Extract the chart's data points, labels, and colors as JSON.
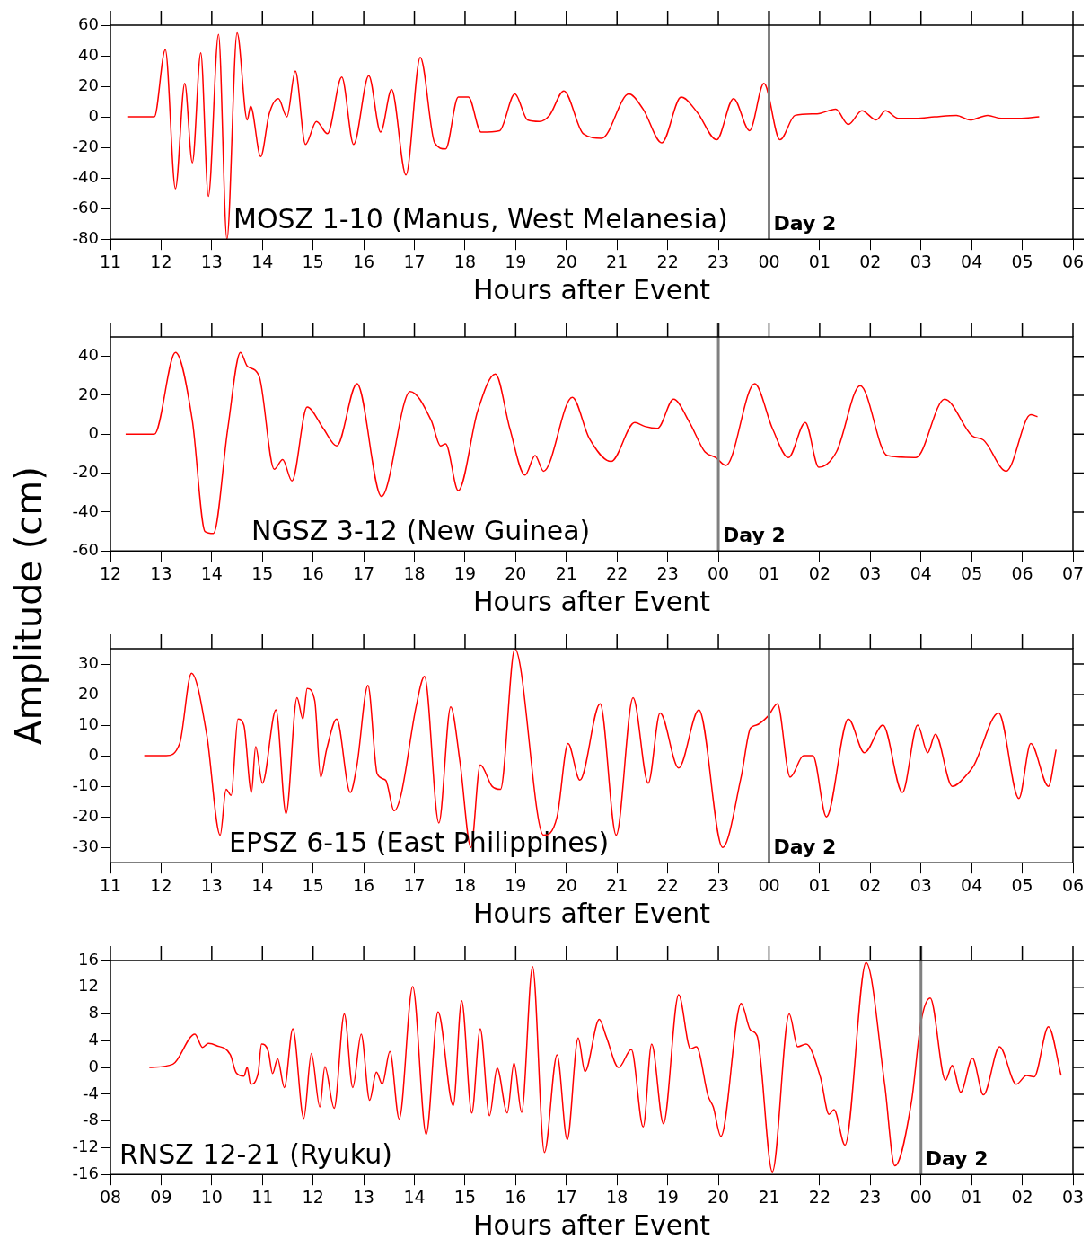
{
  "chart_data": [
    {
      "type": "line",
      "color": "#ff0000",
      "xlabel": "Hours after Event",
      "annotations": [
        "MOSZ 1-10 (Manus, West Melanesia)"
      ],
      "xlim": [
        "2000-01-01T11:00",
        "2000-01-02T06:00"
      ],
      "xticks": [
        {
          "value": "2000-01-01T11:00",
          "label": "11"
        },
        {
          "value": "2000-01-01T12:00",
          "label": "12"
        },
        {
          "value": "2000-01-01T13:00",
          "label": "13"
        },
        {
          "value": "2000-01-01T14:00",
          "label": "14"
        },
        {
          "value": "2000-01-01T15:00",
          "label": "15"
        },
        {
          "value": "2000-01-01T16:00",
          "label": "16"
        },
        {
          "value": "2000-01-01T17:00",
          "label": "17"
        },
        {
          "value": "2000-01-01T18:00",
          "label": "18"
        },
        {
          "value": "2000-01-01T19:00",
          "label": "19"
        },
        {
          "value": "2000-01-01T20:00",
          "label": "20"
        },
        {
          "value": "2000-01-01T21:00",
          "label": "21"
        },
        {
          "value": "2000-01-01T22:00",
          "label": "22"
        },
        {
          "value": "2000-01-01T23:00",
          "label": "23"
        },
        {
          "value": "2000-01-02T00:00",
          "label": "00"
        },
        {
          "value": "2000-01-02T01:00",
          "label": "01"
        },
        {
          "value": "2000-01-02T02:00",
          "label": "02"
        },
        {
          "value": "2000-01-02T03:00",
          "label": "03"
        },
        {
          "value": "2000-01-02T04:00",
          "label": "04"
        },
        {
          "value": "2000-01-02T05:00",
          "label": "05"
        },
        {
          "value": "2000-01-02T06:00",
          "label": "06"
        }
      ],
      "ylim": [
        -80,
        60
      ],
      "yticks": [
        -80,
        -60,
        -40,
        -20,
        0,
        20,
        40,
        60
      ],
      "ref_lines": [
        {
          "axis": "x",
          "value": "2000-01-02T00:00",
          "label": "Day 2",
          "color": "#808080"
        }
      ],
      "x": [
        "2000-01-01T11:21",
        "2000-01-01T11:52",
        "2000-01-01T12:05",
        "2000-01-01T12:17",
        "2000-01-01T12:28",
        "2000-01-01T12:37",
        "2000-01-01T12:47",
        "2000-01-01T12:56",
        "2000-01-01T13:08",
        "2000-01-01T13:18",
        "2000-01-01T13:30",
        "2000-01-01T13:42",
        "2000-01-01T13:46",
        "2000-01-01T13:58",
        "2000-01-01T14:08",
        "2000-01-01T14:19",
        "2000-01-01T14:29",
        "2000-01-01T14:39",
        "2000-01-01T14:51",
        "2000-01-01T15:04",
        "2000-01-01T15:17",
        "2000-01-01T15:34",
        "2000-01-01T15:48",
        "2000-01-01T16:06",
        "2000-01-01T16:20",
        "2000-01-01T16:33",
        "2000-01-01T16:50",
        "2000-01-01T17:07",
        "2000-01-01T17:24",
        "2000-01-01T17:37",
        "2000-01-01T17:52",
        "2000-01-01T18:04",
        "2000-01-01T18:19",
        "2000-01-01T18:41",
        "2000-01-01T18:59",
        "2000-01-01T19:14",
        "2000-01-01T19:28",
        "2000-01-01T19:40",
        "2000-01-01T19:57",
        "2000-01-01T20:20",
        "2000-01-01T20:42",
        "2000-01-01T21:14",
        "2000-01-01T21:31",
        "2000-01-01T21:53",
        "2000-01-01T22:16",
        "2000-01-01T22:35",
        "2000-01-01T22:58",
        "2000-01-01T23:18",
        "2000-01-01T23:37",
        "2000-01-01T23:54",
        "2000-01-02T00:13",
        "2000-01-02T00:31",
        "2000-01-02T00:57",
        "2000-01-02T01:19",
        "2000-01-02T01:34",
        "2000-01-02T01:50",
        "2000-01-02T02:07",
        "2000-01-02T02:18",
        "2000-01-02T02:33",
        "2000-01-02T02:54",
        "2000-01-02T03:16",
        "2000-01-02T03:42",
        "2000-01-02T03:58",
        "2000-01-02T04:19",
        "2000-01-02T04:35",
        "2000-01-02T04:56",
        "2000-01-02T05:20"
      ],
      "values": [
        0,
        0,
        44,
        -47,
        22,
        -30,
        42,
        -52,
        54,
        -80,
        55,
        -2,
        7,
        -26,
        2,
        12,
        0,
        30,
        -18,
        -3,
        -11,
        26,
        -18,
        27,
        -10,
        18,
        -38,
        39,
        -17,
        -21,
        13,
        13,
        -10,
        -9,
        15,
        -2,
        -3,
        1,
        17,
        -11,
        -14,
        15,
        5,
        -17,
        13,
        3,
        -15,
        12,
        -9,
        22,
        -15,
        1,
        2,
        5,
        -5,
        4,
        -2,
        4,
        -1,
        -1,
        0,
        1,
        -2,
        1,
        -1,
        -1,
        0
      ]
    },
    {
      "type": "line",
      "color": "#ff0000",
      "xlabel": "Hours after Event",
      "ylabel": "Amplitude (cm)",
      "annotations": [
        "NGSZ 3-12 (New Guinea)"
      ],
      "xlim": [
        "2000-01-01T12:00",
        "2000-01-02T07:00"
      ],
      "xticks": [
        {
          "value": "2000-01-01T12:00",
          "label": "12"
        },
        {
          "value": "2000-01-01T13:00",
          "label": "13"
        },
        {
          "value": "2000-01-01T14:00",
          "label": "14"
        },
        {
          "value": "2000-01-01T15:00",
          "label": "15"
        },
        {
          "value": "2000-01-01T16:00",
          "label": "16"
        },
        {
          "value": "2000-01-01T17:00",
          "label": "17"
        },
        {
          "value": "2000-01-01T18:00",
          "label": "18"
        },
        {
          "value": "2000-01-01T19:00",
          "label": "19"
        },
        {
          "value": "2000-01-01T20:00",
          "label": "20"
        },
        {
          "value": "2000-01-01T21:00",
          "label": "21"
        },
        {
          "value": "2000-01-01T22:00",
          "label": "22"
        },
        {
          "value": "2000-01-01T23:00",
          "label": "23"
        },
        {
          "value": "2000-01-02T00:00",
          "label": "00"
        },
        {
          "value": "2000-01-02T01:00",
          "label": "01"
        },
        {
          "value": "2000-01-02T02:00",
          "label": "02"
        },
        {
          "value": "2000-01-02T03:00",
          "label": "03"
        },
        {
          "value": "2000-01-02T04:00",
          "label": "04"
        },
        {
          "value": "2000-01-02T05:00",
          "label": "05"
        },
        {
          "value": "2000-01-02T06:00",
          "label": "06"
        },
        {
          "value": "2000-01-02T07:00",
          "label": "07"
        }
      ],
      "ylim": [
        -60,
        50
      ],
      "yticks": [
        -60,
        -40,
        -20,
        0,
        20,
        40
      ],
      "ref_lines": [
        {
          "axis": "x",
          "value": "2000-01-02T00:00",
          "label": "Day 2",
          "color": "#808080"
        }
      ],
      "x": [
        "2000-01-01T12:18",
        "2000-01-01T12:52",
        "2000-01-01T13:17",
        "2000-01-01T13:37",
        "2000-01-01T13:52",
        "2000-01-01T14:02",
        "2000-01-01T14:19",
        "2000-01-01T14:34",
        "2000-01-01T14:42",
        "2000-01-01T14:56",
        "2000-01-01T15:14",
        "2000-01-01T15:24",
        "2000-01-01T15:35",
        "2000-01-01T15:53",
        "2000-01-01T16:12",
        "2000-01-01T16:28",
        "2000-01-01T16:52",
        "2000-01-01T17:21",
        "2000-01-01T17:55",
        "2000-01-01T18:20",
        "2000-01-01T18:31",
        "2000-01-01T18:37",
        "2000-01-01T18:52",
        "2000-01-01T19:15",
        "2000-01-01T19:36",
        "2000-01-01T19:53",
        "2000-01-01T20:11",
        "2000-01-01T20:23",
        "2000-01-01T20:33",
        "2000-01-01T21:07",
        "2000-01-01T21:27",
        "2000-01-01T21:53",
        "2000-01-01T22:21",
        "2000-01-01T22:33",
        "2000-01-01T22:48",
        "2000-01-01T23:07",
        "2000-01-01T23:26",
        "2000-01-01T23:44",
        "2000-01-01T23:57",
        "2000-01-02T00:09",
        "2000-01-02T00:43",
        "2000-01-02T01:04",
        "2000-01-02T01:23",
        "2000-01-02T01:43",
        "2000-01-02T01:59",
        "2000-01-02T02:20",
        "2000-01-02T02:48",
        "2000-01-02T03:20",
        "2000-01-02T03:54",
        "2000-01-02T04:28",
        "2000-01-02T05:01",
        "2000-01-02T05:14",
        "2000-01-02T05:41",
        "2000-01-02T06:10",
        "2000-01-02T06:18"
      ],
      "values": [
        0,
        0,
        42,
        7,
        -50,
        -51,
        3,
        42,
        35,
        30,
        -18,
        -13,
        -24,
        14,
        3,
        -6,
        26,
        -32,
        22,
        7,
        -6,
        -5,
        -29,
        12,
        31,
        3,
        -21,
        -11,
        -19,
        19,
        -2,
        -14,
        6,
        4,
        3,
        18,
        6,
        -9,
        -12,
        -16,
        26,
        3,
        -12,
        6,
        -17,
        -9,
        25,
        -11,
        -12,
        18,
        -1,
        -3,
        -19,
        10,
        9
      ]
    },
    {
      "type": "line",
      "color": "#ff0000",
      "xlabel": "Hours after Event",
      "annotations": [
        "EPSZ 6-15 (East Philippines)"
      ],
      "xlim": [
        "2000-01-01T11:00",
        "2000-01-02T06:00"
      ],
      "xticks": [
        {
          "value": "2000-01-01T11:00",
          "label": "11"
        },
        {
          "value": "2000-01-01T12:00",
          "label": "12"
        },
        {
          "value": "2000-01-01T13:00",
          "label": "13"
        },
        {
          "value": "2000-01-01T14:00",
          "label": "14"
        },
        {
          "value": "2000-01-01T15:00",
          "label": "15"
        },
        {
          "value": "2000-01-01T16:00",
          "label": "16"
        },
        {
          "value": "2000-01-01T17:00",
          "label": "17"
        },
        {
          "value": "2000-01-01T18:00",
          "label": "18"
        },
        {
          "value": "2000-01-01T19:00",
          "label": "19"
        },
        {
          "value": "2000-01-01T20:00",
          "label": "20"
        },
        {
          "value": "2000-01-01T21:00",
          "label": "21"
        },
        {
          "value": "2000-01-01T22:00",
          "label": "22"
        },
        {
          "value": "2000-01-01T23:00",
          "label": "23"
        },
        {
          "value": "2000-01-02T00:00",
          "label": "00"
        },
        {
          "value": "2000-01-02T01:00",
          "label": "01"
        },
        {
          "value": "2000-01-02T02:00",
          "label": "02"
        },
        {
          "value": "2000-01-02T03:00",
          "label": "03"
        },
        {
          "value": "2000-01-02T04:00",
          "label": "04"
        },
        {
          "value": "2000-01-02T05:00",
          "label": "05"
        },
        {
          "value": "2000-01-02T06:00",
          "label": "06"
        }
      ],
      "ylim": [
        -35,
        35
      ],
      "yticks": [
        -30,
        -20,
        -10,
        0,
        10,
        20,
        30
      ],
      "ref_lines": [
        {
          "axis": "x",
          "value": "2000-01-02T00:00",
          "label": "Day 2",
          "color": "#808080"
        }
      ],
      "x": [
        "2000-01-01T11:40",
        "2000-01-01T12:06",
        "2000-01-01T12:22",
        "2000-01-01T12:36",
        "2000-01-01T12:54",
        "2000-01-01T13:10",
        "2000-01-01T13:17",
        "2000-01-01T13:23",
        "2000-01-01T13:31",
        "2000-01-01T13:38",
        "2000-01-01T13:47",
        "2000-01-01T13:52",
        "2000-01-01T14:00",
        "2000-01-01T14:16",
        "2000-01-01T14:28",
        "2000-01-01T14:41",
        "2000-01-01T14:48",
        "2000-01-01T14:53",
        "2000-01-01T15:02",
        "2000-01-01T15:09",
        "2000-01-01T15:16",
        "2000-01-01T15:28",
        "2000-01-01T15:44",
        "2000-01-01T15:52",
        "2000-01-01T16:05",
        "2000-01-01T16:16",
        "2000-01-01T16:26",
        "2000-01-01T16:36",
        "2000-01-01T16:44",
        "2000-01-01T17:02",
        "2000-01-01T17:12",
        "2000-01-01T17:29",
        "2000-01-01T17:43",
        "2000-01-01T17:54",
        "2000-01-01T18:07",
        "2000-01-01T18:18",
        "2000-01-01T18:32",
        "2000-01-01T18:42",
        "2000-01-01T18:59",
        "2000-01-01T19:33",
        "2000-01-01T19:49",
        "2000-01-01T20:02",
        "2000-01-01T20:16",
        "2000-01-01T20:40",
        "2000-01-01T20:59",
        "2000-01-01T21:19",
        "2000-01-01T21:37",
        "2000-01-01T21:51",
        "2000-01-01T22:13",
        "2000-01-01T22:37",
        "2000-01-01T23:05",
        "2000-01-01T23:27",
        "2000-01-01T23:38",
        "2000-01-01T23:45",
        "2000-01-01T23:59",
        "2000-01-02T00:10",
        "2000-01-02T00:25",
        "2000-01-02T00:41",
        "2000-01-02T00:52",
        "2000-01-02T01:08",
        "2000-01-02T01:34",
        "2000-01-02T01:53",
        "2000-01-02T02:15",
        "2000-01-02T02:38",
        "2000-01-02T02:56",
        "2000-01-02T03:08",
        "2000-01-02T03:17",
        "2000-01-02T03:37",
        "2000-01-02T03:55",
        "2000-01-02T04:03",
        "2000-01-02T04:32",
        "2000-01-02T04:56",
        "2000-01-02T05:10",
        "2000-01-02T05:31",
        "2000-01-02T05:40"
      ],
      "values": [
        0,
        0,
        4,
        27,
        7,
        -26,
        -11,
        -13,
        12,
        10,
        -12,
        3,
        -9,
        15,
        -19,
        19,
        12,
        22,
        18,
        -7,
        2,
        12,
        -12,
        -3,
        23,
        -6,
        -8,
        -18,
        -13,
        16,
        26,
        -22,
        16,
        -2,
        -30,
        -3,
        -10,
        -11,
        35,
        -26,
        -20,
        4,
        -8,
        17,
        -26,
        19,
        -9,
        14,
        -4,
        15,
        -30,
        -7,
        9,
        10,
        13,
        17,
        -7,
        0,
        0,
        -20,
        12,
        1,
        10,
        -12,
        10,
        1,
        7,
        -10,
        -6,
        -3,
        14,
        -14,
        4,
        -10,
        2
      ]
    },
    {
      "type": "line",
      "color": "#ff0000",
      "xlabel": "Hours after Event",
      "annotations": [
        "RNSZ 12-21 (Ryuku)"
      ],
      "xlim": [
        "2000-01-01T08:00",
        "2000-01-02T03:00"
      ],
      "xticks": [
        {
          "value": "2000-01-01T08:00",
          "label": "08"
        },
        {
          "value": "2000-01-01T09:00",
          "label": "09"
        },
        {
          "value": "2000-01-01T10:00",
          "label": "10"
        },
        {
          "value": "2000-01-01T11:00",
          "label": "11"
        },
        {
          "value": "2000-01-01T12:00",
          "label": "12"
        },
        {
          "value": "2000-01-01T13:00",
          "label": "13"
        },
        {
          "value": "2000-01-01T14:00",
          "label": "14"
        },
        {
          "value": "2000-01-01T15:00",
          "label": "15"
        },
        {
          "value": "2000-01-01T16:00",
          "label": "16"
        },
        {
          "value": "2000-01-01T17:00",
          "label": "17"
        },
        {
          "value": "2000-01-01T18:00",
          "label": "18"
        },
        {
          "value": "2000-01-01T19:00",
          "label": "19"
        },
        {
          "value": "2000-01-01T20:00",
          "label": "20"
        },
        {
          "value": "2000-01-01T21:00",
          "label": "21"
        },
        {
          "value": "2000-01-01T22:00",
          "label": "22"
        },
        {
          "value": "2000-01-01T23:00",
          "label": "23"
        },
        {
          "value": "2000-01-02T00:00",
          "label": "00"
        },
        {
          "value": "2000-01-02T01:00",
          "label": "01"
        },
        {
          "value": "2000-01-02T02:00",
          "label": "02"
        },
        {
          "value": "2000-01-02T03:00",
          "label": "03"
        }
      ],
      "ylim": [
        -16,
        16
      ],
      "yticks": [
        -16,
        -12,
        -8,
        -4,
        0,
        4,
        8,
        12,
        16
      ],
      "ref_lines": [
        {
          "axis": "x",
          "value": "2000-01-02T00:00",
          "label": "Day 2",
          "color": "#808080"
        }
      ],
      "x": [
        "2000-01-01T08:46",
        "2000-01-01T09:14",
        "2000-01-01T09:40",
        "2000-01-01T09:49",
        "2000-01-01T09:56",
        "2000-01-01T10:05",
        "2000-01-01T10:22",
        "2000-01-01T10:29",
        "2000-01-01T10:38",
        "2000-01-01T10:42",
        "2000-01-01T10:46",
        "2000-01-01T10:55",
        "2000-01-01T10:59",
        "2000-01-01T11:07",
        "2000-01-01T11:12",
        "2000-01-01T11:18",
        "2000-01-01T11:26",
        "2000-01-01T11:36",
        "2000-01-01T11:49",
        "2000-01-01T11:58",
        "2000-01-01T12:08",
        "2000-01-01T12:14",
        "2000-01-01T12:25",
        "2000-01-01T12:37",
        "2000-01-01T12:47",
        "2000-01-01T12:57",
        "2000-01-01T13:07",
        "2000-01-01T13:15",
        "2000-01-01T13:22",
        "2000-01-01T13:31",
        "2000-01-01T13:42",
        "2000-01-01T13:58",
        "2000-01-01T14:14",
        "2000-01-01T14:28",
        "2000-01-01T14:46",
        "2000-01-01T14:56",
        "2000-01-01T15:08",
        "2000-01-01T15:18",
        "2000-01-01T15:29",
        "2000-01-01T15:38",
        "2000-01-01T15:50",
        "2000-01-01T15:58",
        "2000-01-01T16:07",
        "2000-01-01T16:20",
        "2000-01-01T16:34",
        "2000-01-01T16:49",
        "2000-01-01T17:01",
        "2000-01-01T17:14",
        "2000-01-01T17:22",
        "2000-01-01T17:39",
        "2000-01-01T17:47",
        "2000-01-01T18:02",
        "2000-01-01T18:17",
        "2000-01-01T18:31",
        "2000-01-01T18:41",
        "2000-01-01T18:55",
        "2000-01-01T19:13",
        "2000-01-01T19:27",
        "2000-01-01T19:34",
        "2000-01-01T19:48",
        "2000-01-01T19:54",
        "2000-01-01T20:03",
        "2000-01-01T20:27",
        "2000-01-01T20:38",
        "2000-01-01T20:46",
        "2000-01-01T21:04",
        "2000-01-01T21:24",
        "2000-01-01T21:34",
        "2000-01-01T21:44",
        "2000-01-01T22:01",
        "2000-01-01T22:11",
        "2000-01-01T22:17",
        "2000-01-01T22:30",
        "2000-01-01T22:55",
        "2000-01-01T23:17",
        "2000-01-01T23:29",
        "2000-01-01T23:49",
        "2000-01-02T00:00",
        "2000-01-02T00:11",
        "2000-01-02T00:29",
        "2000-01-02T00:37",
        "2000-01-02T00:47",
        "2000-01-02T01:01",
        "2000-01-02T01:14",
        "2000-01-02T01:33",
        "2000-01-02T01:53",
        "2000-01-02T02:05",
        "2000-01-02T02:14",
        "2000-01-02T02:31",
        "2000-01-02T02:46"
      ],
      "values": [
        0,
        0.5,
        5,
        3,
        3.6,
        3.3,
        1.9,
        -0.8,
        -1.3,
        0,
        -2.5,
        -0.8,
        3.5,
        2.4,
        -0.9,
        1.3,
        -3,
        5.8,
        -7.6,
        2.1,
        -5.9,
        0.1,
        -6.1,
        8,
        -3,
        5,
        -4.9,
        -0.7,
        -2.5,
        2.4,
        -7.7,
        12.1,
        -10,
        8.3,
        -5.7,
        10,
        -6.8,
        5.8,
        -7.2,
        -0.1,
        -6.8,
        0.7,
        -6.7,
        15.1,
        -12.7,
        1.9,
        -10.8,
        4.4,
        -0.6,
        7.2,
        4.7,
        0,
        2.7,
        -8.9,
        3.5,
        -8.4,
        10.9,
        2.8,
        3.1,
        -4.3,
        -5.9,
        -10.3,
        9.6,
        5.6,
        4.7,
        -15.6,
        8,
        3.1,
        3.5,
        -1.5,
        -7,
        -6.3,
        -11.6,
        15.7,
        -2.5,
        -14.7,
        -4.9,
        6.8,
        10.4,
        -1.9,
        0.3,
        -3.7,
        1.4,
        -4.1,
        3.1,
        -2.5,
        -1.2,
        -1.4,
        6.1,
        -1.2
      ]
    }
  ]
}
